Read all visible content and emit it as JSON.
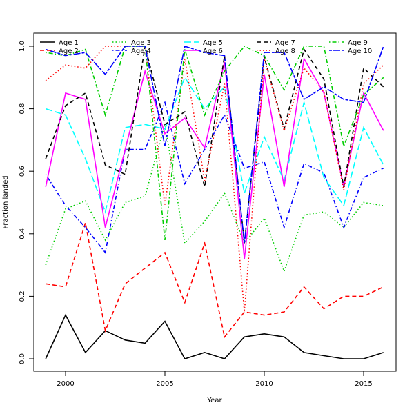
{
  "chart_data": {
    "type": "line",
    "title": "",
    "xlabel": "Year",
    "ylabel": "Fraction landed",
    "xlim": [
      1998.3,
      2016.7
    ],
    "ylim": [
      -0.04,
      1.04
    ],
    "xticks": [
      2000,
      2005,
      2010,
      2015
    ],
    "xtick_labels": [
      "2000",
      "2005",
      "2010",
      "2015"
    ],
    "yticks": [
      0.0,
      0.2,
      0.4,
      0.6,
      0.8,
      1.0
    ],
    "ytick_labels": [
      "0.0",
      "0.2",
      "0.4",
      "0.6",
      "0.8",
      "1.0"
    ],
    "grid": false,
    "legend_position": "top-left",
    "x": [
      1999,
      2000,
      2001,
      2002,
      2003,
      2004,
      2005,
      2006,
      2007,
      2008,
      2009,
      2010,
      2011,
      2012,
      2013,
      2014,
      2015,
      2016
    ],
    "series": [
      {
        "name": "Age 1",
        "color": "#000000",
        "dash": "solid",
        "values": [
          0.0,
          0.14,
          0.02,
          0.09,
          0.06,
          0.05,
          0.12,
          0.0,
          0.02,
          0.0,
          0.07,
          0.08,
          0.07,
          0.02,
          0.01,
          0.0,
          0.0,
          0.02
        ]
      },
      {
        "name": "Age 2",
        "color": "#ff0000",
        "dash": "dashed",
        "values": [
          0.24,
          0.23,
          0.435,
          0.09,
          0.24,
          0.29,
          0.34,
          0.18,
          0.37,
          0.07,
          0.15,
          0.14,
          0.15,
          0.23,
          0.16,
          0.2,
          0.2,
          0.23
        ]
      },
      {
        "name": "Age 3",
        "color": "#00cd00",
        "dash": "dotted",
        "values": [
          0.3,
          0.48,
          0.505,
          0.38,
          0.5,
          0.52,
          0.75,
          0.37,
          0.44,
          0.53,
          0.37,
          0.45,
          0.28,
          0.46,
          0.47,
          0.42,
          0.5,
          0.49
        ]
      },
      {
        "name": "Age 4",
        "color": "#0000ff",
        "dash": "dotdash",
        "values": [
          0.59,
          0.49,
          0.42,
          0.34,
          0.67,
          0.67,
          0.82,
          0.56,
          0.67,
          0.78,
          0.61,
          0.63,
          0.42,
          0.625,
          0.595,
          0.42,
          0.58,
          0.61
        ]
      },
      {
        "name": "Age 5",
        "color": "#00ffff",
        "dash": "longdash",
        "values": [
          0.8,
          0.78,
          0.64,
          0.47,
          0.74,
          0.75,
          0.735,
          0.9,
          0.8,
          0.87,
          0.53,
          0.71,
          0.57,
          0.82,
          0.58,
          0.49,
          0.74,
          0.62
        ]
      },
      {
        "name": "Age 6",
        "color": "#ff00ff",
        "dash": "solid",
        "values": [
          0.55,
          0.85,
          0.83,
          0.42,
          0.67,
          0.92,
          0.72,
          0.77,
          0.675,
          0.95,
          0.32,
          0.91,
          0.55,
          0.96,
          0.85,
          0.55,
          0.85,
          0.73
        ]
      },
      {
        "name": "Age 7",
        "color": "#000000",
        "dash": "dashed",
        "values": [
          0.64,
          0.81,
          0.85,
          0.62,
          0.59,
          1.0,
          0.75,
          0.79,
          0.55,
          0.97,
          0.37,
          0.965,
          0.735,
          0.99,
          0.895,
          0.55,
          0.93,
          0.87
        ]
      },
      {
        "name": "Age 8",
        "color": "#ff0000",
        "dash": "dotted",
        "values": [
          0.89,
          0.94,
          0.93,
          1.0,
          1.0,
          1.0,
          0.49,
          0.96,
          0.57,
          0.88,
          0.15,
          0.96,
          0.73,
          0.93,
          0.855,
          0.54,
          0.88,
          0.94
        ]
      },
      {
        "name": "Age 9",
        "color": "#00cd00",
        "dash": "dotdash",
        "values": [
          0.98,
          0.97,
          0.99,
          0.78,
          1.0,
          1.0,
          0.38,
          0.99,
          0.78,
          0.92,
          1.0,
          0.97,
          0.86,
          1.0,
          1.0,
          0.68,
          0.845,
          0.9
        ]
      },
      {
        "name": "Age 10",
        "color": "#0000ff",
        "dash": "twodash",
        "values": [
          0.99,
          0.97,
          0.98,
          0.91,
          1.0,
          1.0,
          0.68,
          1.0,
          0.98,
          0.97,
          0.37,
          0.98,
          0.98,
          0.83,
          0.87,
          0.83,
          0.82,
          1.0
        ]
      }
    ]
  }
}
